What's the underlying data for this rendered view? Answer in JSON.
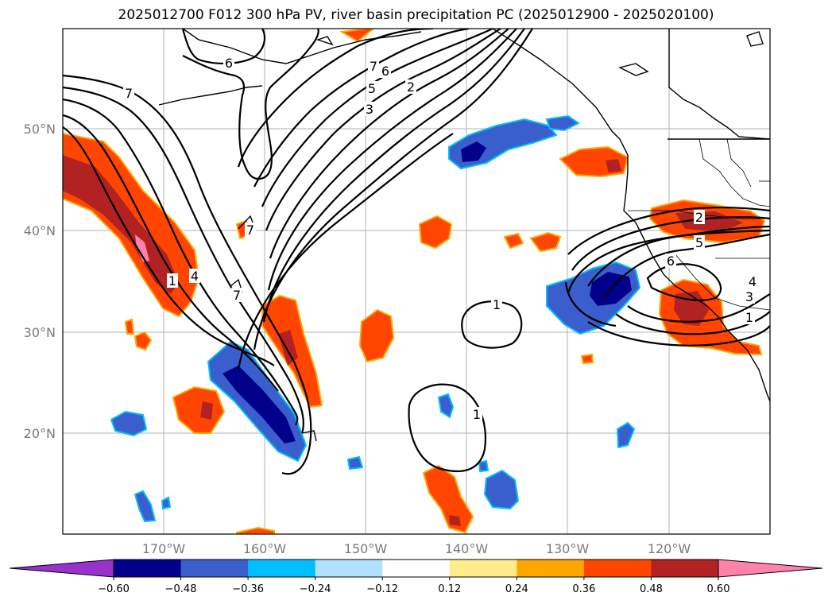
{
  "title": "2025012700 F012 300 hPa PV, river basin precipitation PC (2025012900 - 2025020100)",
  "lat_labels": [
    "50°N",
    "40°N",
    "30°N",
    "20°N"
  ],
  "lon_labels": [
    "170°W",
    "160°W",
    "150°W",
    "140°W",
    "130°W",
    "120°W"
  ],
  "colorbar": {
    "tick_labels": [
      "−0.60",
      "−0.48",
      "−0.36",
      "−0.24",
      "−0.12",
      "0.12",
      "0.24",
      "0.36",
      "0.48",
      "0.60"
    ],
    "colors": [
      "#9932cc",
      "#00008b",
      "#3a5fcd",
      "#00bfff",
      "#b0e2ff",
      "#ffffff",
      "#ffec8b",
      "#ffa500",
      "#ff4500",
      "#b22222",
      "#ff82ab"
    ]
  },
  "contour_labels": [
    "7",
    "6",
    "7",
    "6",
    "5",
    "3",
    "2",
    "7",
    "1",
    "4",
    "7",
    "1",
    "1",
    "2",
    "5",
    "6",
    "4",
    "3",
    "1"
  ],
  "colors": {
    "positive_strong": "#b22222",
    "positive": "#ff4500",
    "positive_edge": "#ffa500",
    "negative_strong": "#00008b",
    "negative": "#3a5fcd",
    "negative_edge": "#00bfff",
    "contour": "#000000",
    "grid": "#b0b0b0",
    "coast": "#000000"
  }
}
